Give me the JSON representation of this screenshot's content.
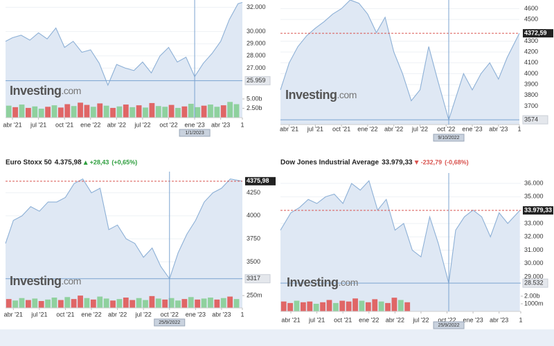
{
  "chart_data": [
    {
      "type": "line",
      "watermark_brand": "Investing",
      "watermark_suffix": ".com",
      "x": [
        -0.8,
        0,
        1,
        2,
        3,
        4,
        5,
        6,
        7,
        8,
        9,
        10,
        11,
        12,
        13,
        14,
        15,
        16,
        17,
        18,
        19,
        20,
        21,
        22,
        23,
        24,
        25,
        26,
        26.5
      ],
      "values": [
        29200,
        29500,
        29700,
        29300,
        29900,
        29400,
        30300,
        28700,
        29200,
        28300,
        28500,
        27400,
        25600,
        27300,
        27000,
        26800,
        27500,
        26600,
        28000,
        28700,
        27500,
        27900,
        26300,
        27400,
        28200,
        29200,
        31000,
        32300,
        32400
      ],
      "color": "#8db0d6",
      "fill": "#dfe8f4",
      "xlim": [
        -0.8,
        26.5
      ],
      "xticks": [
        {
          "value": 0,
          "label": "abr '21"
        },
        {
          "value": 3,
          "label": "jul '21"
        },
        {
          "value": 6,
          "label": "oct '21"
        },
        {
          "value": 9,
          "label": "ene '22"
        },
        {
          "value": 12,
          "label": "abr '22"
        },
        {
          "value": 15,
          "label": "jul '22"
        },
        {
          "value": 18,
          "label": "oct '22"
        },
        {
          "value": 21,
          "label": "ene '23"
        },
        {
          "value": 24,
          "label": "abr '23"
        },
        {
          "value": 26.5,
          "label": "1"
        }
      ],
      "ylim": [
        25200,
        32600
      ],
      "yticks": [
        {
          "value": 32000,
          "label": "32.000"
        },
        {
          "value": 30000,
          "label": "30.000"
        },
        {
          "value": 29000,
          "label": "29.000"
        },
        {
          "value": 28000,
          "label": "28.000"
        },
        {
          "value": 27000,
          "label": "27.000"
        }
      ],
      "grid": true,
      "crosshair_x": {
        "value": 21,
        "label": "1/1/2023"
      },
      "crosshair_y": {
        "value": 25959,
        "label": "25.959"
      },
      "volume": {
        "values": [
          3200000000.0,
          2800000000.0,
          3500000000.0,
          2600000000.0,
          3000000000.0,
          2400000000.0,
          2900000000.0,
          3300000000.0,
          2700000000.0,
          3600000000.0,
          3100000000.0,
          4000000000.0,
          3400000000.0,
          2900000000.0,
          3800000000.0,
          3200000000.0,
          2600000000.0,
          3000000000.0,
          3500000000.0,
          2800000000.0,
          3300000000.0,
          2700000000.0,
          3900000000.0,
          3100000000.0,
          2900000000.0,
          3400000000.0,
          2600000000.0,
          3000000000.0,
          3700000000.0,
          2800000000.0,
          3200000000.0,
          3500000000.0,
          2900000000.0,
          3300000000.0,
          4200000000.0,
          3600000000.0
        ],
        "up": [
          1,
          0,
          1,
          0,
          1,
          1,
          0,
          1,
          0,
          0,
          1,
          0,
          0,
          1,
          0,
          1,
          0,
          1,
          0,
          1,
          0,
          1,
          0,
          1,
          1,
          0,
          1,
          0,
          1,
          1,
          0,
          1,
          1,
          0,
          1,
          1
        ],
        "up_color": "#8fd19e",
        "down_color": "#e06666",
        "ylim": [
          0,
          6100000000.0
        ],
        "yticks": [
          {
            "value": 5000000000.0,
            "label": "5.00b"
          },
          {
            "value": 2500000000.0,
            "label": "2.50b"
          }
        ]
      }
    },
    {
      "type": "line",
      "watermark_brand": "Investing",
      "watermark_suffix": ".com",
      "x": [
        -1,
        0,
        1,
        2,
        3,
        4,
        5,
        6,
        7,
        8,
        9,
        10,
        11,
        12,
        13,
        14,
        15,
        16,
        17,
        18.3,
        19,
        20,
        21,
        22,
        23,
        24,
        25,
        26.4
      ],
      "values": [
        3850,
        4100,
        4250,
        4350,
        4420,
        4480,
        4550,
        4600,
        4680,
        4650,
        4550,
        4380,
        4520,
        4200,
        4000,
        3750,
        3850,
        4250,
        3950,
        3574,
        3750,
        4000,
        3850,
        4000,
        4100,
        3950,
        4150,
        4372.59
      ],
      "color": "#8db0d6",
      "fill": "#dfe8f4",
      "xlim": [
        -1,
        26.4
      ],
      "xticks": [
        {
          "value": 0,
          "label": "abr '21"
        },
        {
          "value": 3,
          "label": "jul '21"
        },
        {
          "value": 6,
          "label": "oct '21"
        },
        {
          "value": 9,
          "label": "ene '22"
        },
        {
          "value": 12,
          "label": "abr '22"
        },
        {
          "value": 15,
          "label": "jul '22"
        },
        {
          "value": 18,
          "label": "oct '22"
        },
        {
          "value": 21,
          "label": "ene '23"
        },
        {
          "value": 24,
          "label": "abr '23"
        },
        {
          "value": 26.4,
          "label": "1"
        }
      ],
      "ylim": [
        3530,
        4680
      ],
      "yticks": [
        4600,
        4500,
        4300,
        4200,
        4100,
        4000,
        3900,
        3800,
        3700
      ],
      "grid": true,
      "crosshair_x": {
        "value": 18.3,
        "label": "9/10/2022"
      },
      "crosshair_y": 3574,
      "last_value": {
        "value": 4372.59,
        "label": "4372,59"
      },
      "last_color": "#d9534f"
    },
    {
      "type": "line",
      "title": "Euro Stoxx 50",
      "price": "4.375,98",
      "change": "+28,43",
      "change_pct": "(+0,65%)",
      "change_color": "#2e9e3e",
      "watermark_brand": "Investing",
      "watermark_suffix": ".com",
      "x": [
        -0.9,
        0,
        1,
        2,
        3,
        4,
        5,
        6,
        7,
        8,
        9,
        10,
        11,
        12,
        13,
        14,
        15,
        16,
        17,
        18,
        19,
        20,
        21,
        22,
        23,
        24,
        25,
        26.4
      ],
      "values": [
        3700,
        3950,
        4000,
        4100,
        4050,
        4150,
        4150,
        4200,
        4350,
        4400,
        4250,
        4300,
        3850,
        3900,
        3750,
        3700,
        3550,
        3650,
        3450,
        3317,
        3600,
        3800,
        3950,
        4150,
        4250,
        4300,
        4400,
        4375.98
      ],
      "color": "#8db0d6",
      "fill": "#dfe8f4",
      "xlim": [
        -0.9,
        26.4
      ],
      "xticks": [
        {
          "value": 0,
          "label": "abr '21"
        },
        {
          "value": 3,
          "label": "jul '21"
        },
        {
          "value": 6,
          "label": "oct '21"
        },
        {
          "value": 9,
          "label": "ene '22"
        },
        {
          "value": 12,
          "label": "abr '22"
        },
        {
          "value": 15,
          "label": "jul '22"
        },
        {
          "value": 18,
          "label": "oct '22"
        },
        {
          "value": 21,
          "label": "ene '23"
        },
        {
          "value": 24,
          "label": "abr '23"
        },
        {
          "value": 26.4,
          "label": "1"
        }
      ],
      "ylim": [
        3225,
        4480
      ],
      "yticks": [
        4250,
        4000,
        3750,
        3500
      ],
      "grid": true,
      "crosshair_x": {
        "value": 18,
        "label": "25/9/2022"
      },
      "crosshair_y": 3317,
      "last_value": {
        "value": 4375.98,
        "label": "4375,98"
      },
      "last_color": "#d9534f",
      "volume": {
        "values": [
          180000000.0,
          150000000.0,
          200000000.0,
          160000000.0,
          190000000.0,
          140000000.0,
          170000000.0,
          210000000.0,
          160000000.0,
          220000000.0,
          180000000.0,
          250000000.0,
          200000000.0,
          170000000.0,
          230000000.0,
          190000000.0,
          150000000.0,
          180000000.0,
          210000000.0,
          160000000.0,
          200000000.0,
          160000000.0,
          240000000.0,
          190000000.0,
          170000000.0,
          200000000.0,
          150000000.0,
          180000000.0,
          220000000.0,
          170000000.0,
          190000000.0,
          210000000.0,
          170000000.0,
          200000000.0,
          230000000.0,
          180000000.0
        ],
        "up": [
          0,
          1,
          1,
          0,
          1,
          0,
          1,
          1,
          0,
          1,
          0,
          0,
          1,
          0,
          1,
          1,
          0,
          1,
          0,
          0,
          1,
          1,
          0,
          1,
          0,
          1,
          1,
          0,
          1,
          0,
          1,
          1,
          0,
          1,
          0,
          1
        ],
        "up_color": "#8fd19e",
        "down_color": "#e06666",
        "ylim": [
          0,
          350000000.0
        ],
        "yticks": [
          {
            "value": 250000000.0,
            "label": "250m"
          }
        ]
      }
    },
    {
      "type": "line",
      "title": "Dow Jones Industrial Average",
      "price": "33.979,33",
      "change": "-232,79",
      "change_pct": "(-0,68%)",
      "change_color": "#d9534f",
      "watermark_brand": "Investing",
      "watermark_suffix": ".com",
      "x": [
        -1.2,
        0,
        1,
        2,
        3,
        4,
        5,
        6,
        7,
        8,
        9,
        10,
        11,
        12,
        13,
        14,
        15,
        16,
        17,
        18.2,
        19,
        20,
        21,
        22,
        23,
        24,
        25,
        26.4
      ],
      "values": [
        32500,
        33800,
        34200,
        34800,
        34500,
        35000,
        35200,
        34500,
        36000,
        35500,
        36200,
        34000,
        34800,
        32500,
        33000,
        31000,
        30500,
        33500,
        31500,
        28532,
        32500,
        33500,
        34000,
        33500,
        32000,
        33800,
        33000,
        33979.33
      ],
      "color": "#8db0d6",
      "fill": "#dfe8f4",
      "xlim": [
        -1.2,
        26.5
      ],
      "xticks": [
        {
          "value": 0,
          "label": "abr '21"
        },
        {
          "value": 3,
          "label": "jul '21"
        },
        {
          "value": 6,
          "label": "oct '21"
        },
        {
          "value": 9,
          "label": "ene '22"
        },
        {
          "value": 12,
          "label": "abr '22"
        },
        {
          "value": 15,
          "label": "jul '22"
        },
        {
          "value": 18,
          "label": "oct '22"
        },
        {
          "value": 21,
          "label": "ene '23"
        },
        {
          "value": 24,
          "label": "abr '23"
        },
        {
          "value": 26.5,
          "label": "1"
        }
      ],
      "ylim": [
        28230,
        36780
      ],
      "yticks": [
        {
          "value": 36000,
          "label": "36.000"
        },
        {
          "value": 35000,
          "label": "35.000"
        },
        {
          "value": 33000,
          "label": "33.000"
        },
        {
          "value": 32000,
          "label": "32.000"
        },
        {
          "value": 31000,
          "label": "31.000"
        },
        {
          "value": 30000,
          "label": "30.000"
        },
        {
          "value": 29000,
          "label": "29.000"
        }
      ],
      "grid": true,
      "crosshair_x": {
        "value": 18.2,
        "label": "25/9/2022"
      },
      "crosshair_y": {
        "value": 28532,
        "label": "28.532"
      },
      "last_value": {
        "value": 33979.33,
        "label": "33.979,33"
      },
      "last_color": "#d9534f",
      "volume": {
        "values": [
          1300000000.0,
          1100000000.0,
          1400000000.0,
          1200000000.0,
          1300000000.0,
          1000000000.0,
          1200000000.0,
          1500000000.0,
          1100000000.0,
          1400000000.0,
          1300000000.0,
          1700000000.0,
          1400000000.0,
          1200000000.0,
          1600000000.0,
          1300000000.0,
          1100000000.0,
          1800000000.0,
          1500000000.0,
          1200000000.0
        ],
        "up": [
          0,
          0,
          1,
          0,
          0,
          1,
          0,
          0,
          1,
          0,
          0,
          0,
          1,
          0,
          0,
          1,
          0,
          0,
          1,
          0
        ],
        "up_color": "#8fd19e",
        "down_color": "#e06666",
        "ylim": [
          0,
          2180000000.0
        ],
        "yticks": [
          {
            "value": 2000000000.0,
            "label": "2.00b"
          },
          {
            "value": 1000000000.0,
            "label": "1000m"
          }
        ]
      }
    }
  ]
}
